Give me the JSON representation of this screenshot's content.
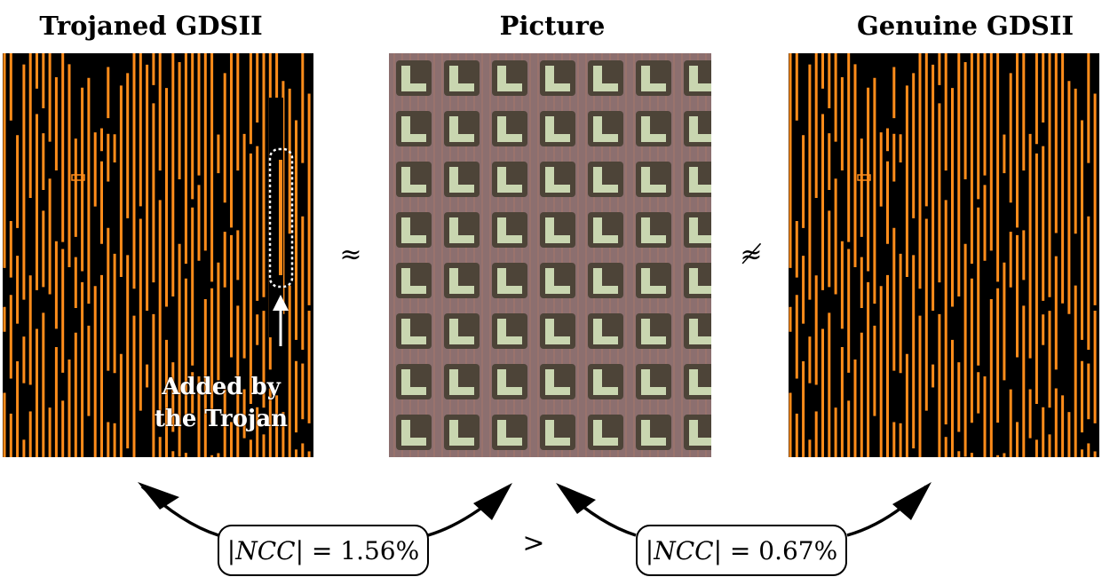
{
  "titles": {
    "trojaned": "Trojaned GDSII",
    "picture": "Picture",
    "genuine": "Genuine GDSII"
  },
  "symbols": {
    "approx": "≈",
    "not_approx": "≉",
    "greater": ">"
  },
  "annotation": {
    "line1": "Added by",
    "line2": "the Trojan"
  },
  "ncc": {
    "left": {
      "prefix": "|",
      "var": "NCC",
      "suffix": "| = 1.56%"
    },
    "right": {
      "prefix": "|",
      "var": "NCC",
      "suffix": "| = 0.67%"
    }
  },
  "colors": {
    "wire": "#ff8c1a",
    "background": "#000000",
    "die": "#8c6f6f",
    "pad_outer": "#4d4438",
    "pad_inner": "#c9d6b0"
  }
}
